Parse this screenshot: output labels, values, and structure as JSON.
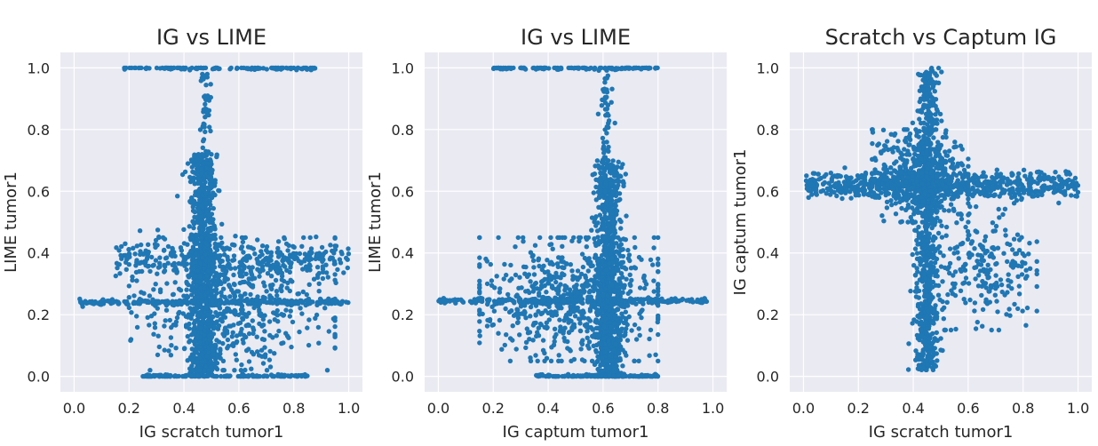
{
  "chart_data": [
    {
      "type": "scatter",
      "title": "IG vs LIME",
      "xlabel": "IG scratch tumor1",
      "ylabel": "LIME tumor1",
      "xlim": [
        -0.05,
        1.05
      ],
      "ylim": [
        -0.05,
        1.05
      ],
      "xticks": [
        "0.0",
        "0.2",
        "0.4",
        "0.6",
        "0.8",
        "1.0"
      ],
      "yticks": [
        "0.0",
        "0.2",
        "0.4",
        "0.6",
        "0.8",
        "1.0"
      ],
      "grid": true,
      "color": "#1f77b4",
      "clusters": [
        {
          "shape": "hband",
          "x_range": [
            0.18,
            0.88
          ],
          "y": 1.0,
          "spread": 0.003,
          "n": 140
        },
        {
          "shape": "hband",
          "x_range": [
            0.02,
            1.0
          ],
          "y": 0.24,
          "spread": 0.004,
          "n": 260
        },
        {
          "shape": "hband",
          "x_range": [
            0.15,
            1.0
          ],
          "y": 0.38,
          "spread": 0.03,
          "n": 320
        },
        {
          "shape": "vband",
          "x": 0.47,
          "spread": 0.025,
          "y_range": [
            0.0,
            0.72
          ],
          "n": 900
        },
        {
          "shape": "vband",
          "x": 0.48,
          "spread": 0.01,
          "y_range": [
            0.72,
            0.98
          ],
          "n": 45
        },
        {
          "shape": "hband",
          "x_range": [
            0.25,
            0.85
          ],
          "y": 0.0,
          "spread": 0.003,
          "n": 150
        },
        {
          "shape": "blob",
          "x_range": [
            0.2,
            0.95
          ],
          "y_range": [
            0.02,
            0.45
          ],
          "n": 520
        }
      ]
    },
    {
      "type": "scatter",
      "title": "IG vs LIME",
      "xlabel": "IG captum tumor1",
      "ylabel": "LIME tumor1",
      "xlim": [
        -0.05,
        1.05
      ],
      "ylim": [
        -0.05,
        1.05
      ],
      "xticks": [
        "0.0",
        "0.2",
        "0.4",
        "0.6",
        "0.8",
        "1.0"
      ],
      "yticks": [
        "0.0",
        "0.2",
        "0.4",
        "0.6",
        "0.8",
        "1.0"
      ],
      "grid": true,
      "color": "#1f77b4",
      "clusters": [
        {
          "shape": "hband",
          "x_range": [
            0.2,
            0.8
          ],
          "y": 1.0,
          "spread": 0.003,
          "n": 140
        },
        {
          "shape": "hband",
          "x_range": [
            0.0,
            0.98
          ],
          "y": 0.245,
          "spread": 0.004,
          "n": 260
        },
        {
          "shape": "vband",
          "x": 0.62,
          "spread": 0.025,
          "y_range": [
            0.0,
            0.7
          ],
          "n": 900
        },
        {
          "shape": "vband",
          "x": 0.61,
          "spread": 0.01,
          "y_range": [
            0.7,
            0.98
          ],
          "n": 45
        },
        {
          "shape": "hband",
          "x_range": [
            0.35,
            0.8
          ],
          "y": 0.0,
          "spread": 0.003,
          "n": 150
        },
        {
          "shape": "blob",
          "x_range": [
            0.15,
            0.8
          ],
          "y_range": [
            0.05,
            0.45
          ],
          "n": 620
        }
      ]
    },
    {
      "type": "scatter",
      "title": "Scratch vs Captum IG",
      "xlabel": "IG scratch tumor1",
      "ylabel": "IG captum tumor1",
      "xlim": [
        -0.05,
        1.05
      ],
      "ylim": [
        -0.05,
        1.05
      ],
      "xticks": [
        "0.0",
        "0.2",
        "0.4",
        "0.6",
        "0.8",
        "1.0"
      ],
      "yticks": [
        "0.0",
        "0.2",
        "0.4",
        "0.6",
        "0.8",
        "1.0"
      ],
      "grid": true,
      "color": "#1f77b4",
      "clusters": [
        {
          "shape": "hband",
          "x_range": [
            0.0,
            1.0
          ],
          "y": 0.62,
          "spread": 0.02,
          "n": 650
        },
        {
          "shape": "vband",
          "x": 0.45,
          "spread": 0.02,
          "y_range": [
            0.02,
            1.0
          ],
          "n": 750
        },
        {
          "shape": "blob",
          "x_range": [
            0.25,
            0.6
          ],
          "y_range": [
            0.5,
            0.8
          ],
          "n": 500
        },
        {
          "shape": "blob",
          "x_range": [
            0.45,
            0.85
          ],
          "y_range": [
            0.15,
            0.55
          ],
          "n": 230
        }
      ]
    }
  ]
}
